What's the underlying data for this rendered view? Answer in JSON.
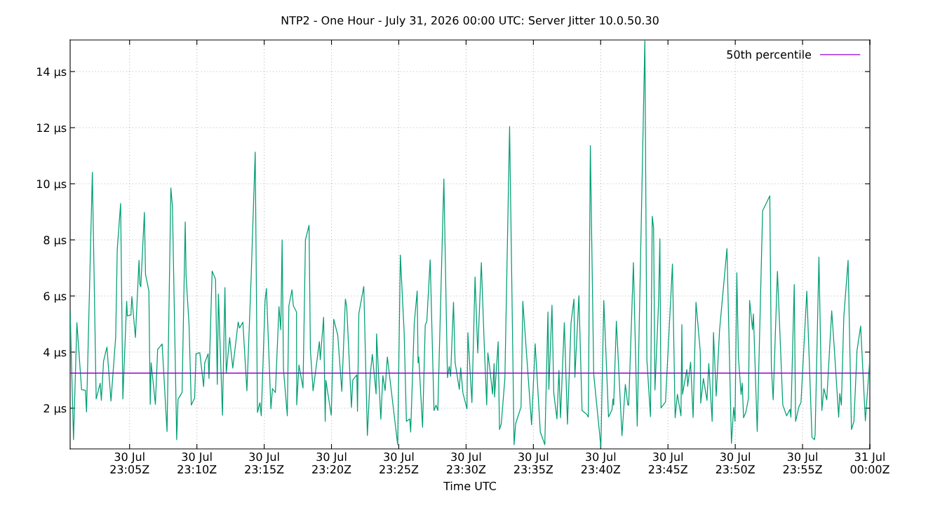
{
  "chart_data": {
    "type": "line",
    "title": "NTP2 - One Hour - July 31, 2026 00:00 UTC: Server Jitter 10.0.50.30",
    "xlabel": "Time UTC",
    "xlim": [
      "2026-07-30T23:00:35",
      "2026-07-31T00:00"
    ],
    "xticks": [
      {
        "value": "2026-07-30T23:05",
        "label": "30 Jul\n23:05Z"
      },
      {
        "value": "2026-07-30T23:10",
        "label": "30 Jul\n23:10Z"
      },
      {
        "value": "2026-07-30T23:15",
        "label": "30 Jul\n23:15Z"
      },
      {
        "value": "2026-07-30T23:20",
        "label": "30 Jul\n23:20Z"
      },
      {
        "value": "2026-07-30T23:25",
        "label": "30 Jul\n23:25Z"
      },
      {
        "value": "2026-07-30T23:30",
        "label": "30 Jul\n23:30Z"
      },
      {
        "value": "2026-07-30T23:35",
        "label": "30 Jul\n23:35Z"
      },
      {
        "value": "2026-07-30T23:40",
        "label": "30 Jul\n23:40Z"
      },
      {
        "value": "2026-07-30T23:45",
        "label": "30 Jul\n23:45Z"
      },
      {
        "value": "2026-07-30T23:50",
        "label": "30 Jul\n23:50Z"
      },
      {
        "value": "2026-07-30T23:55",
        "label": "30 Jul\n23:55Z"
      },
      {
        "value": "2026-07-31T00:00",
        "label": "31 Jul\n00:00Z"
      }
    ],
    "ylim": [
      0.55,
      15.125
    ],
    "yticks": [
      {
        "value": 2,
        "label": "2 µs"
      },
      {
        "value": 4,
        "label": "4 µs"
      },
      {
        "value": 6,
        "label": "6 µs"
      },
      {
        "value": 8,
        "label": "8 µs"
      },
      {
        "value": 10,
        "label": "10 µs"
      },
      {
        "value": 12,
        "label": "12 µs"
      },
      {
        "value": 14,
        "label": "14 µs"
      }
    ],
    "grid": true,
    "legend": "top right",
    "line_style": "solid",
    "ref_lines": [
      {
        "axis": "y",
        "value": 3.25,
        "label": "50th percentile",
        "color": "#9400d3"
      }
    ],
    "series": [
      {
        "color": "#009e73",
        "x": [
          "2026-07-30T23:00:35",
          "2026-07-30T23:00:50",
          "2026-07-30T23:01:05",
          "2026-07-30T23:01:26",
          "2026-07-30T23:01:43",
          "2026-07-30T23:01:48",
          "2026-07-30T23:02:14",
          "2026-07-30T23:02:31",
          "2026-07-30T23:02:49",
          "2026-07-30T23:02:54",
          "2026-07-30T23:03:04",
          "2026-07-30T23:03:19",
          "2026-07-30T23:03:37",
          "2026-07-30T23:03:58",
          "2026-07-30T23:04:05",
          "2026-07-30T23:04:20",
          "2026-07-30T23:04:30",
          "2026-07-30T23:04:47",
          "2026-07-30T23:04:50",
          "2026-07-30T23:05:06",
          "2026-07-30T23:05:10",
          "2026-07-30T23:05:26",
          "2026-07-30T23:05:42",
          "2026-07-30T23:05:46",
          "2026-07-30T23:05:50",
          "2026-07-30T23:06:06",
          "2026-07-30T23:06:11",
          "2026-07-30T23:06:26",
          "2026-07-30T23:06:32",
          "2026-07-30T23:06:36",
          "2026-07-30T23:06:55",
          "2026-07-30T23:07:05",
          "2026-07-30T23:07:25",
          "2026-07-30T23:07:47",
          "2026-07-30T23:08:04",
          "2026-07-30T23:08:11",
          "2026-07-30T23:08:30",
          "2026-07-30T23:08:36",
          "2026-07-30T23:08:54",
          "2026-07-30T23:09:08",
          "2026-07-30T23:09:12",
          "2026-07-30T23:09:25",
          "2026-07-30T23:09:35",
          "2026-07-30T23:09:50",
          "2026-07-30T23:09:56",
          "2026-07-30T23:10:13",
          "2026-07-30T23:10:30",
          "2026-07-30T23:10:35",
          "2026-07-30T23:10:50",
          "2026-07-30T23:10:54",
          "2026-07-30T23:11:08",
          "2026-07-30T23:11:23",
          "2026-07-30T23:11:31",
          "2026-07-30T23:11:36",
          "2026-07-30T23:11:54",
          "2026-07-30T23:12:05",
          "2026-07-30T23:12:11",
          "2026-07-30T23:12:26",
          "2026-07-30T23:12:40",
          "2026-07-30T23:13:04",
          "2026-07-30T23:13:10",
          "2026-07-30T23:13:25",
          "2026-07-30T23:13:43",
          "2026-07-30T23:14:02",
          "2026-07-30T23:14:20",
          "2026-07-30T23:14:30",
          "2026-07-30T23:14:41",
          "2026-07-30T23:14:47",
          "2026-07-30T23:15:04",
          "2026-07-30T23:15:10",
          "2026-07-30T23:15:30",
          "2026-07-30T23:15:37",
          "2026-07-30T23:15:50",
          "2026-07-30T23:16:06",
          "2026-07-30T23:16:14",
          "2026-07-30T23:16:20",
          "2026-07-30T23:16:26",
          "2026-07-30T23:16:43",
          "2026-07-30T23:16:50",
          "2026-07-30T23:17:04",
          "2026-07-30T23:17:10",
          "2026-07-30T23:17:24",
          "2026-07-30T23:17:25",
          "2026-07-30T23:17:35",
          "2026-07-30T23:17:53",
          "2026-07-30T23:18:04",
          "2026-07-30T23:18:20",
          "2026-07-30T23:18:26",
          "2026-07-30T23:18:38",
          "2026-07-30T23:19:06",
          "2026-07-30T23:19:10",
          "2026-07-30T23:19:25",
          "2026-07-30T23:19:32",
          "2026-07-30T23:19:35",
          "2026-07-30T23:19:59",
          "2026-07-30T23:20:10",
          "2026-07-30T23:20:28",
          "2026-07-30T23:20:46",
          "2026-07-30T23:21:02",
          "2026-07-30T23:21:08",
          "2026-07-30T23:21:29",
          "2026-07-30T23:21:35",
          "2026-07-30T23:21:53",
          "2026-07-30T23:21:56",
          "2026-07-30T23:22:02",
          "2026-07-30T23:22:24",
          "2026-07-30T23:22:40",
          "2026-07-30T23:22:53",
          "2026-07-30T23:23:02",
          "2026-07-30T23:23:19",
          "2026-07-30T23:23:21",
          "2026-07-30T23:23:40",
          "2026-07-30T23:23:49",
          "2026-07-30T23:23:59",
          "2026-07-30T23:24:09",
          "2026-07-30T23:24:55",
          "2026-07-30T23:25:07",
          "2026-07-30T23:25:24",
          "2026-07-30T23:25:34",
          "2026-07-30T23:25:49",
          "2026-07-30T23:25:53",
          "2026-07-30T23:26:09",
          "2026-07-30T23:26:22",
          "2026-07-30T23:26:26",
          "2026-07-30T23:26:29",
          "2026-07-30T23:26:46",
          "2026-07-30T23:26:58",
          "2026-07-30T23:27:05",
          "2026-07-30T23:27:20",
          "2026-07-30T23:27:37",
          "2026-07-30T23:27:46",
          "2026-07-30T23:27:54",
          "2026-07-30T23:28:21",
          "2026-07-30T23:28:37",
          "2026-07-30T23:28:45",
          "2026-07-30T23:28:51",
          "2026-07-30T23:29:04",
          "2026-07-30T23:29:11",
          "2026-07-30T23:29:30",
          "2026-07-30T23:29:36",
          "2026-07-30T23:29:46",
          "2026-07-30T23:30:04",
          "2026-07-30T23:30:08",
          "2026-07-30T23:30:26",
          "2026-07-30T23:30:40",
          "2026-07-30T23:30:52",
          "2026-07-30T23:31:08",
          "2026-07-30T23:31:21",
          "2026-07-30T23:31:32",
          "2026-07-30T23:31:37",
          "2026-07-30T23:31:46",
          "2026-07-30T23:31:58",
          "2026-07-30T23:32:05",
          "2026-07-30T23:32:07",
          "2026-07-30T23:32:23",
          "2026-07-30T23:32:29",
          "2026-07-30T23:32:37",
          "2026-07-30T23:32:53",
          "2026-07-30T23:33:14",
          "2026-07-30T23:33:34",
          "2026-07-30T23:33:41",
          "2026-07-30T23:34:05",
          "2026-07-30T23:34:13",
          "2026-07-30T23:34:52",
          "2026-07-30T23:35:08",
          "2026-07-30T23:35:31",
          "2026-07-30T23:35:51",
          "2026-07-30T23:36:05",
          "2026-07-30T23:36:09",
          "2026-07-30T23:36:23",
          "2026-07-30T23:36:31",
          "2026-07-30T23:36:45",
          "2026-07-30T23:36:54",
          "2026-07-30T23:37:01",
          "2026-07-30T23:37:18",
          "2026-07-30T23:37:32",
          "2026-07-30T23:37:48",
          "2026-07-30T23:38:01",
          "2026-07-30T23:38:05",
          "2026-07-30T23:38:23",
          "2026-07-30T23:38:37",
          "2026-07-30T23:38:58",
          "2026-07-30T23:39:05",
          "2026-07-30T23:39:14",
          "2026-07-30T23:39:29",
          "2026-07-30T23:40:01",
          "2026-07-30T23:40:14",
          "2026-07-30T23:40:35",
          "2026-07-30T23:40:50",
          "2026-07-30T23:40:55",
          "2026-07-30T23:40:58",
          "2026-07-30T23:41:10",
          "2026-07-30T23:41:35",
          "2026-07-30T23:41:50",
          "2026-07-30T23:42:01",
          "2026-07-30T23:42:05",
          "2026-07-30T23:42:26",
          "2026-07-30T23:42:43",
          "2026-07-30T23:43:17",
          "2026-07-30T23:43:26",
          "2026-07-30T23:43:42",
          "2026-07-30T23:43:50",
          "2026-07-30T23:43:56",
          "2026-07-30T23:44:02",
          "2026-07-30T23:44:18",
          "2026-07-30T23:44:24",
          "2026-07-30T23:44:29",
          "2026-07-30T23:44:49",
          "2026-07-30T23:45:20",
          "2026-07-30T23:45:32",
          "2026-07-30T23:45:42",
          "2026-07-30T23:45:58",
          "2026-07-30T23:46:02",
          "2026-07-30T23:46:05",
          "2026-07-30T23:46:24",
          "2026-07-30T23:46:28",
          "2026-07-30T23:46:41",
          "2026-07-30T23:46:52",
          "2026-07-30T23:47:05",
          "2026-07-30T23:47:24",
          "2026-07-30T23:47:26",
          "2026-07-30T23:47:38",
          "2026-07-30T23:47:54",
          "2026-07-30T23:48:02",
          "2026-07-30T23:48:17",
          "2026-07-30T23:48:23",
          "2026-07-30T23:48:35",
          "2026-07-30T23:48:50",
          "2026-07-30T23:49:23",
          "2026-07-30T23:49:43",
          "2026-07-30T23:49:53",
          "2026-07-30T23:49:59",
          "2026-07-30T23:50:07",
          "2026-07-30T23:50:14",
          "2026-07-30T23:50:26",
          "2026-07-30T23:50:31",
          "2026-07-30T23:50:37",
          "2026-07-30T23:50:47",
          "2026-07-30T23:50:59",
          "2026-07-30T23:51:04",
          "2026-07-30T23:51:17",
          "2026-07-30T23:51:21",
          "2026-07-30T23:51:38",
          "2026-07-30T23:52:02",
          "2026-07-30T23:52:34",
          "2026-07-30T23:52:41",
          "2026-07-30T23:52:49",
          "2026-07-30T23:53:08",
          "2026-07-30T23:53:32",
          "2026-07-30T23:53:49",
          "2026-07-30T23:54:04",
          "2026-07-30T23:54:08",
          "2026-07-30T23:54:23",
          "2026-07-30T23:54:29",
          "2026-07-30T23:54:44",
          "2026-07-30T23:54:53",
          "2026-07-30T23:55:19",
          "2026-07-30T23:55:42",
          "2026-07-30T23:55:53",
          "2026-07-30T23:55:56",
          "2026-07-30T23:56:13",
          "2026-07-30T23:56:26",
          "2026-07-30T23:56:35",
          "2026-07-30T23:56:48",
          "2026-07-30T23:57:10",
          "2026-07-30T23:57:23",
          "2026-07-30T23:57:41",
          "2026-07-30T23:57:46",
          "2026-07-30T23:57:53",
          "2026-07-30T23:58:04",
          "2026-07-30T23:58:23",
          "2026-07-30T23:58:38",
          "2026-07-30T23:58:49",
          "2026-07-30T23:59:03",
          "2026-07-30T23:59:19",
          "2026-07-30T23:59:40",
          "2026-07-31T00:00"
        ],
        "values": [
          5.45,
          0.88,
          5.05,
          2.66,
          2.64,
          1.87,
          10.41,
          2.33,
          2.89,
          2.28,
          3.68,
          4.18,
          2.26,
          4.54,
          7.66,
          9.3,
          2.33,
          5.81,
          5.29,
          5.32,
          5.98,
          4.52,
          7.27,
          6.41,
          6.33,
          8.98,
          6.77,
          6.18,
          2.14,
          3.62,
          2.14,
          4.09,
          4.29,
          1.17,
          9.85,
          9.19,
          0.88,
          2.33,
          2.56,
          8.64,
          6.7,
          4.98,
          2.11,
          2.36,
          3.94,
          3.98,
          2.77,
          3.62,
          3.94,
          3.06,
          6.89,
          6.6,
          2.85,
          6.07,
          1.75,
          6.3,
          3.25,
          4.52,
          3.43,
          5.07,
          4.86,
          5.07,
          2.62,
          6.7,
          11.13,
          1.85,
          2.2,
          1.73,
          5.84,
          6.27,
          1.98,
          2.7,
          2.56,
          5.62,
          4.8,
          8.0,
          3.39,
          1.73,
          5.65,
          6.22,
          5.65,
          5.43,
          2.12,
          3.54,
          2.72,
          8.0,
          8.52,
          4.07,
          2.62,
          4.37,
          3.73,
          5.24,
          1.53,
          2.99,
          1.75,
          5.17,
          4.6,
          2.6,
          5.89,
          5.6,
          2.03,
          3.01,
          3.19,
          1.89,
          5.37,
          6.34,
          1.03,
          3.21,
          3.92,
          2.51,
          4.65,
          1.61,
          3.16,
          2.63,
          3.83,
          0.7,
          7.46,
          4.69,
          1.53,
          1.62,
          1.15,
          5.02,
          6.18,
          3.62,
          3.83,
          1.32,
          4.96,
          5.1,
          7.29,
          1.92,
          2.11,
          1.92,
          10.17,
          3.09,
          3.49,
          3.14,
          5.78,
          3.64,
          2.67,
          3.44,
          2.54,
          1.98,
          4.69,
          2.2,
          6.68,
          3.97,
          7.19,
          4.26,
          2.12,
          3.97,
          3.4,
          2.51,
          3.59,
          2.4,
          4.37,
          1.24,
          1.45,
          3.06,
          12.04,
          0.7,
          1.45,
          2.04,
          5.81,
          1.41,
          4.3,
          1.15,
          0.7,
          5.43,
          2.67,
          5.67,
          2.54,
          1.62,
          3.35,
          1.66,
          5.05,
          1.43,
          5.05,
          5.89,
          3.1,
          6.01,
          1.92,
          1.78,
          1.68,
          11.36,
          3.21,
          0.62,
          5.84,
          1.69,
          1.93,
          2.33,
          2.11,
          5.1,
          1.02,
          2.85,
          2.12,
          2.11,
          7.19,
          1.36,
          15.1,
          3.73,
          1.7,
          8.84,
          8.42,
          2.65,
          5.73,
          8.04,
          2.01,
          2.22,
          7.14,
          1.66,
          2.5,
          1.73,
          4.98,
          2.5,
          3.38,
          2.78,
          3.64,
          1.67,
          5.78,
          4.02,
          2.18,
          3.06,
          2.28,
          3.59,
          1.53,
          4.7,
          2.43,
          4.78,
          7.69,
          0.75,
          2.03,
          1.53,
          6.83,
          3.83,
          2.49,
          2.9,
          1.66,
          1.85,
          2.36,
          5.84,
          4.8,
          5.36,
          1.17,
          9.04,
          9.57,
          3.45,
          2.3,
          6.88,
          2.11,
          1.73,
          1.96,
          1.68,
          6.41,
          1.53,
          2.06,
          2.2,
          6.17,
          0.96,
          0.88,
          1.05,
          7.39,
          1.92,
          2.7,
          2.3,
          5.47,
          3.95,
          1.68,
          2.53,
          2.11,
          5.26,
          7.27,
          1.24,
          1.53,
          4.07,
          4.93,
          1.55,
          3.78
        ]
      }
    ]
  }
}
